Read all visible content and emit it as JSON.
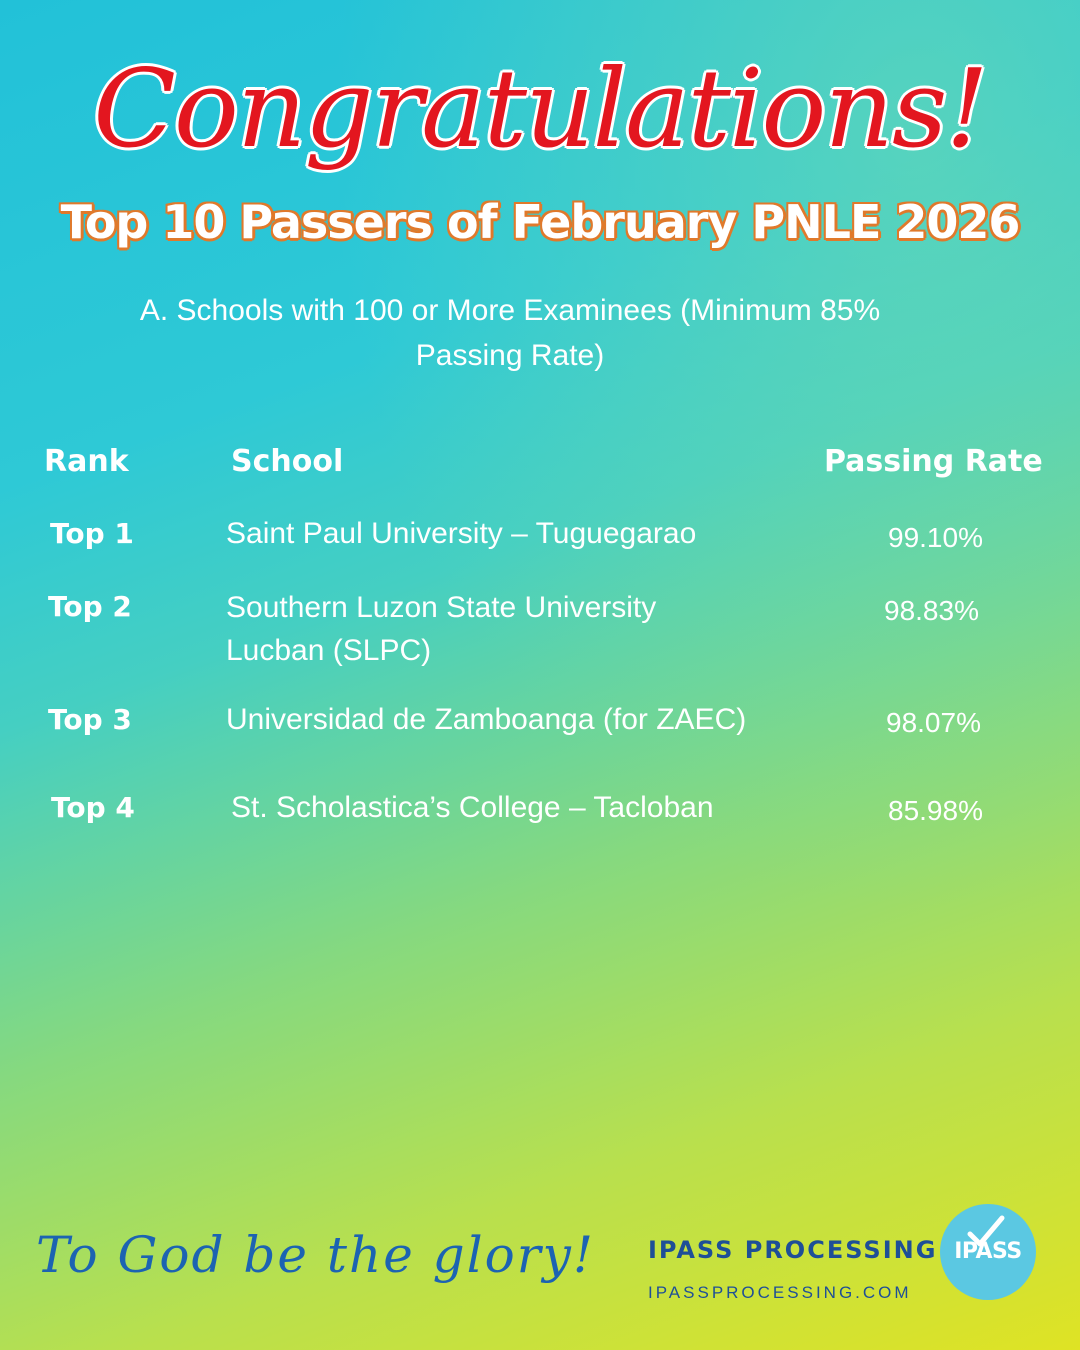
{
  "headline": "Congratulations!",
  "title": "Top 10 Passers of February PNLE 2026",
  "subtitle_line1": "A. Schools with 100 or More Examinees (Minimum 85%",
  "subtitle_line2": "Passing Rate)",
  "table": {
    "headers": {
      "rank": "Rank",
      "school": "School",
      "rate": "Passing Rate"
    },
    "rows": [
      {
        "rank": "Top 1",
        "school": "Saint Paul University – Tuguegarao",
        "rate": "99.10%"
      },
      {
        "rank": "Top 2",
        "school": "Southern Luzon State University",
        "school_line2": "Lucban (SLPC)",
        "rate": "98.83%"
      },
      {
        "rank": "Top 3",
        "school": "Universidad de Zamboanga (for ZAEC)",
        "rate": "98.07%"
      },
      {
        "rank": "Top 4",
        "school": "St. Scholastica’s College – Tacloban",
        "rate": "85.98%"
      }
    ]
  },
  "footer": {
    "glory": "To God be the glory!",
    "brand_name": "IPASS PROCESSING",
    "brand_url": "IPASSPROCESSING.COM",
    "logo_text": "IPASS",
    "logo_icon": "checkmark-icon"
  },
  "colors": {
    "headline": "#e3161f",
    "title_outline": "#e0792b",
    "brand": "#1e4f97",
    "logo_bg": "#5bc8e2"
  }
}
